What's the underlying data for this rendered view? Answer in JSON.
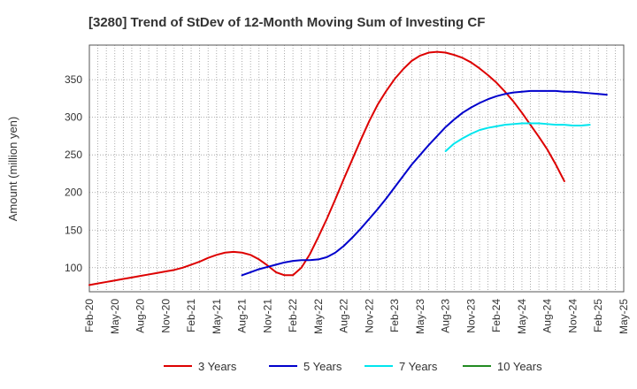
{
  "chart_data": {
    "type": "line",
    "title": "[3280]  Trend of StDev of 12-Month Moving Sum of Investing CF",
    "xlabel": "",
    "ylabel": "Amount (million yen)",
    "ylim": [
      68,
      396
    ],
    "yticks": [
      100,
      150,
      200,
      250,
      300,
      350
    ],
    "x_ticks": [
      "Feb-20",
      "May-20",
      "Aug-20",
      "Nov-20",
      "Feb-21",
      "May-21",
      "Aug-21",
      "Nov-21",
      "Feb-22",
      "May-22",
      "Aug-22",
      "Nov-22",
      "Feb-23",
      "May-23",
      "Aug-23",
      "Nov-23",
      "Feb-24",
      "May-24",
      "Aug-24",
      "Nov-24",
      "Feb-25",
      "May-25"
    ],
    "grid": true,
    "legend_position": "bottom",
    "series": [
      {
        "name": "3 Years",
        "color": "#dd0000",
        "start_index": 0,
        "values": [
          77,
          79,
          81,
          83,
          85,
          87,
          89,
          91,
          93,
          95,
          97,
          100,
          104,
          108,
          113,
          117,
          120,
          121,
          120,
          117,
          111,
          103,
          94,
          90,
          90,
          100,
          118,
          141,
          165,
          191,
          218,
          244,
          270,
          295,
          317,
          335,
          351,
          364,
          375,
          382,
          386,
          387,
          386,
          383,
          379,
          373,
          365,
          356,
          346,
          334,
          321,
          306,
          290,
          274,
          257,
          237,
          215
        ]
      },
      {
        "name": "5 Years",
        "color": "#0000cc",
        "start_index": 18,
        "values": [
          90,
          94,
          98,
          101,
          104,
          107,
          109,
          110,
          110,
          111,
          114,
          120,
          129,
          140,
          152,
          165,
          178,
          192,
          207,
          222,
          237,
          250,
          263,
          275,
          287,
          297,
          306,
          313,
          319,
          324,
          328,
          331,
          333,
          334,
          335,
          335,
          335,
          335,
          334,
          334,
          333,
          332,
          331,
          330
        ]
      },
      {
        "name": "7 Years",
        "color": "#00e5ee",
        "start_index": 42,
        "values": [
          255,
          265,
          272,
          278,
          283,
          286,
          288,
          290,
          291,
          292,
          292,
          292,
          291,
          290,
          290,
          289,
          289,
          290
        ]
      },
      {
        "name": "10 Years",
        "color": "#228b22",
        "start_index": 0,
        "values": []
      }
    ]
  }
}
